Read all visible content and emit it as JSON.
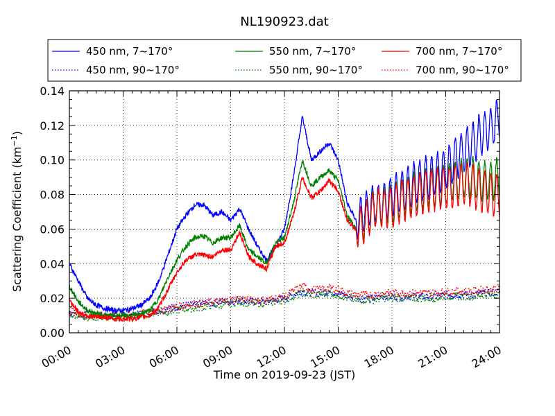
{
  "chart_data": {
    "type": "line",
    "title": "NL190923.dat",
    "xlabel": "Time on 2019-09-23 (JST)",
    "ylabel": "Scattering Coefficient (km",
    "ylabel_sup": "−1",
    "ylabel_close": ")",
    "xlim_hours": [
      0,
      24
    ],
    "ylim": [
      0.0,
      0.14
    ],
    "grid": true,
    "legend_placement": "top (above plot)",
    "x_ticks": [
      "00:00",
      "03:00",
      "06:00",
      "09:00",
      "12:00",
      "15:00",
      "18:00",
      "21:00",
      "24:00"
    ],
    "x_tick_hours": [
      0,
      3,
      6,
      9,
      12,
      15,
      18,
      21,
      24
    ],
    "y_ticks": [
      "0.00",
      "0.02",
      "0.04",
      "0.06",
      "0.08",
      "0.10",
      "0.12",
      "0.14"
    ],
    "y_tick_values": [
      0,
      0.02,
      0.04,
      0.06,
      0.08,
      0.1,
      0.12,
      0.14
    ],
    "x": [
      0,
      0.5,
      1,
      1.5,
      2,
      2.5,
      3,
      3.5,
      4,
      4.5,
      5,
      5.5,
      6,
      6.5,
      7,
      7.5,
      8,
      8.5,
      9,
      9.5,
      10,
      10.5,
      11,
      11.5,
      12,
      12.5,
      13,
      13.5,
      14,
      14.5,
      15,
      15.5,
      16,
      16.5,
      17,
      17.5,
      18,
      18.5,
      19,
      19.5,
      20,
      20.5,
      21,
      21.5,
      22,
      22.5,
      23,
      23.5,
      24
    ],
    "series": [
      {
        "name": "450 nm, 7～170°",
        "label_text": "450 nm, 7",
        "label_range": "170°",
        "color": "#0000ff",
        "style": "solid",
        "oscillation": 0.012,
        "values": [
          0.04,
          0.03,
          0.02,
          0.016,
          0.014,
          0.013,
          0.013,
          0.014,
          0.016,
          0.02,
          0.03,
          0.045,
          0.06,
          0.068,
          0.074,
          0.074,
          0.068,
          0.07,
          0.065,
          0.072,
          0.06,
          0.05,
          0.042,
          0.05,
          0.06,
          0.09,
          0.125,
          0.1,
          0.105,
          0.11,
          0.1,
          0.075,
          0.065,
          0.07,
          0.075,
          0.075,
          0.08,
          0.082,
          0.085,
          0.088,
          0.09,
          0.092,
          0.095,
          0.1,
          0.105,
          0.11,
          0.115,
          0.118,
          0.125
        ]
      },
      {
        "name": "450 nm, 90～170°",
        "label_text": "450 nm, 90",
        "label_range": "170°",
        "color": "#0000ff",
        "style": "dotted",
        "oscillation": 0,
        "values": [
          0.012,
          0.011,
          0.01,
          0.01,
          0.01,
          0.01,
          0.01,
          0.01,
          0.011,
          0.012,
          0.013,
          0.014,
          0.015,
          0.016,
          0.016,
          0.017,
          0.017,
          0.018,
          0.018,
          0.019,
          0.018,
          0.018,
          0.018,
          0.019,
          0.02,
          0.022,
          0.024,
          0.023,
          0.023,
          0.024,
          0.023,
          0.021,
          0.02,
          0.02,
          0.02,
          0.021,
          0.021,
          0.021,
          0.021,
          0.021,
          0.021,
          0.021,
          0.022,
          0.022,
          0.022,
          0.022,
          0.023,
          0.023,
          0.024
        ]
      },
      {
        "name": "550 nm, 7～170°",
        "label_text": "550 nm, 7",
        "label_range": "170°",
        "color": "#008000",
        "style": "solid",
        "oscillation": 0.011,
        "values": [
          0.027,
          0.018,
          0.013,
          0.011,
          0.01,
          0.01,
          0.01,
          0.01,
          0.011,
          0.013,
          0.02,
          0.032,
          0.042,
          0.05,
          0.055,
          0.056,
          0.052,
          0.055,
          0.055,
          0.062,
          0.048,
          0.044,
          0.04,
          0.052,
          0.055,
          0.075,
          0.1,
          0.085,
          0.09,
          0.094,
          0.088,
          0.068,
          0.06,
          0.065,
          0.072,
          0.073,
          0.075,
          0.078,
          0.08,
          0.082,
          0.084,
          0.085,
          0.086,
          0.088,
          0.09,
          0.09,
          0.088,
          0.088,
          0.09
        ]
      },
      {
        "name": "550 nm, 90～170°",
        "label_text": "550 nm, 90",
        "label_range": "170°",
        "color": "#008000",
        "style": "dotted",
        "oscillation": 0,
        "values": [
          0.011,
          0.01,
          0.009,
          0.009,
          0.009,
          0.009,
          0.009,
          0.009,
          0.01,
          0.011,
          0.012,
          0.012,
          0.013,
          0.014,
          0.014,
          0.015,
          0.016,
          0.016,
          0.017,
          0.018,
          0.017,
          0.017,
          0.017,
          0.018,
          0.019,
          0.021,
          0.023,
          0.022,
          0.022,
          0.023,
          0.022,
          0.02,
          0.019,
          0.019,
          0.019,
          0.02,
          0.02,
          0.02,
          0.02,
          0.02,
          0.02,
          0.02,
          0.021,
          0.021,
          0.021,
          0.021,
          0.022,
          0.022,
          0.022
        ]
      },
      {
        "name": "700 nm, 7～170°",
        "label_text": "700 nm, 7",
        "label_range": "170°",
        "color": "#ff0000",
        "style": "solid",
        "oscillation": 0.012,
        "values": [
          0.019,
          0.012,
          0.01,
          0.009,
          0.009,
          0.008,
          0.008,
          0.008,
          0.009,
          0.01,
          0.015,
          0.025,
          0.035,
          0.042,
          0.045,
          0.045,
          0.044,
          0.048,
          0.048,
          0.058,
          0.044,
          0.04,
          0.037,
          0.05,
          0.052,
          0.068,
          0.09,
          0.078,
          0.082,
          0.088,
          0.082,
          0.065,
          0.06,
          0.064,
          0.072,
          0.072,
          0.073,
          0.076,
          0.078,
          0.08,
          0.082,
          0.083,
          0.084,
          0.085,
          0.086,
          0.085,
          0.082,
          0.08,
          0.08
        ]
      },
      {
        "name": "700 nm, 90～170°",
        "label_text": "700 nm, 90",
        "label_range": "170°",
        "color": "#ff0000",
        "style": "dotted",
        "oscillation": 0,
        "values": [
          0.013,
          0.011,
          0.01,
          0.01,
          0.01,
          0.01,
          0.01,
          0.01,
          0.011,
          0.012,
          0.013,
          0.014,
          0.015,
          0.016,
          0.017,
          0.017,
          0.018,
          0.018,
          0.019,
          0.02,
          0.019,
          0.019,
          0.019,
          0.02,
          0.021,
          0.024,
          0.027,
          0.025,
          0.025,
          0.026,
          0.025,
          0.023,
          0.022,
          0.022,
          0.022,
          0.023,
          0.023,
          0.023,
          0.023,
          0.023,
          0.023,
          0.023,
          0.024,
          0.024,
          0.024,
          0.024,
          0.025,
          0.025,
          0.026
        ]
      }
    ]
  }
}
